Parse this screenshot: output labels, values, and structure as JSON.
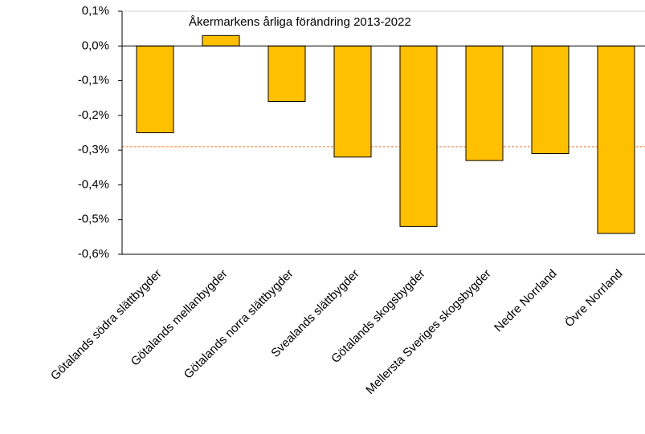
{
  "chart_data": {
    "type": "bar",
    "title": "Åkermarkens årliga förändring 2013-2022",
    "categories": [
      "Götalands södra slättbygder",
      "Götalands mellanbygder",
      "Götalands norra slättbygder",
      "Svealands slättbygder",
      "Götalands skogsbygder",
      "Mellersta Sveriges skogsbygder",
      "Nedre Norrland",
      "Övre Norrland"
    ],
    "values": [
      -0.25,
      0.03,
      -0.16,
      -0.32,
      -0.52,
      -0.33,
      -0.31,
      -0.54
    ],
    "color": "#ffc000",
    "ylim": [
      -0.6,
      0.1
    ],
    "yticks": [
      {
        "value": 0.1,
        "label": "0,1%"
      },
      {
        "value": 0,
        "label": "0,0%"
      },
      {
        "value": -0.1,
        "label": "-0,1%"
      },
      {
        "value": -0.2,
        "label": "-0,2%"
      },
      {
        "value": -0.3,
        "label": "-0,3%"
      },
      {
        "value": -0.4,
        "label": "-0,4%"
      },
      {
        "value": -0.5,
        "label": "-0,5%"
      },
      {
        "value": -0.6,
        "label": "-0,6%"
      }
    ],
    "reference_line": {
      "value": -0.29,
      "color": "#ed7d31"
    }
  }
}
